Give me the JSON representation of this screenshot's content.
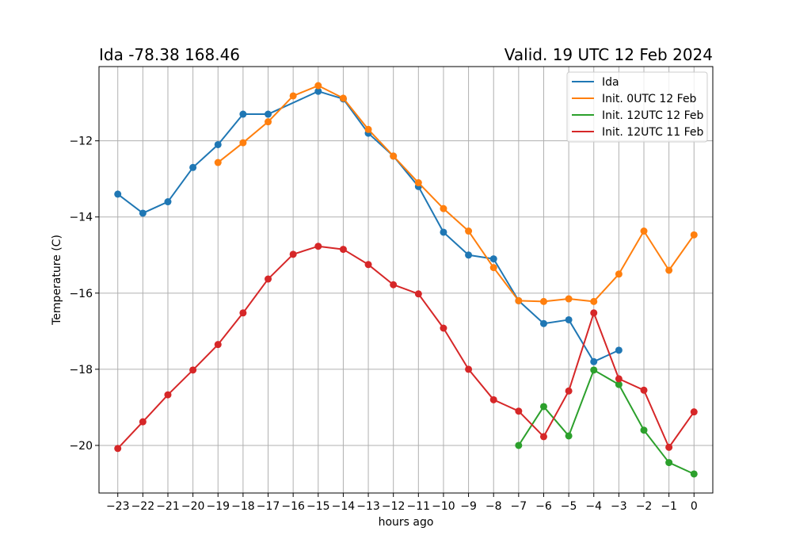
{
  "chart_data": {
    "type": "line",
    "title_left": "Ida -78.38 168.46",
    "title_right": "Valid. 19 UTC 12 Feb 2024",
    "xlabel": "hours ago",
    "ylabel": "Temperature (C)",
    "xlim": [
      -23.75,
      0.75
    ],
    "ylim": [
      -21.25,
      -10.05
    ],
    "x_ticks": [
      -23,
      -22,
      -21,
      -20,
      -19,
      -18,
      -17,
      -16,
      -15,
      -14,
      -13,
      -12,
      -11,
      -10,
      -9,
      -8,
      -7,
      -6,
      -5,
      -4,
      -3,
      -2,
      -1,
      0
    ],
    "x_tick_labels": [
      "−23",
      "−22",
      "−21",
      "−20",
      "−19",
      "−18",
      "−17",
      "−16",
      "−15",
      "−14",
      "−13",
      "−12",
      "−11",
      "−10",
      "−9",
      "−8",
      "−7",
      "−6",
      "−5",
      "−4",
      "−3",
      "−2",
      "−1",
      "0"
    ],
    "y_ticks": [
      -20,
      -18,
      -16,
      -14,
      -12
    ],
    "y_tick_labels": [
      "−20",
      "−18",
      "−16",
      "−14",
      "−12"
    ],
    "grid": true,
    "legend_position": "top-right",
    "series": [
      {
        "name": "Ida",
        "color": "#1f77b4",
        "x": [
          -23,
          -22,
          -21,
          -20,
          -19,
          -18,
          -17,
          -15,
          -14,
          -13,
          -12,
          -11,
          -10,
          -9,
          -8,
          -7,
          -6,
          -5,
          -4,
          -3
        ],
        "y": [
          -13.4,
          -13.9,
          -13.6,
          -12.7,
          -12.1,
          -11.3,
          -11.3,
          -10.7,
          -10.9,
          -11.8,
          -12.4,
          -13.2,
          -14.4,
          -15.0,
          -15.1,
          -16.2,
          -16.8,
          -16.7,
          -17.8,
          -17.5
        ]
      },
      {
        "name": "Init. 0UTC 12 Feb",
        "color": "#ff7f0e",
        "x": [
          -19,
          -18,
          -17,
          -16,
          -15,
          -14,
          -13,
          -12,
          -11,
          -10,
          -9,
          -8,
          -7,
          -6,
          -5,
          -4,
          -3,
          -2,
          -1,
          0
        ],
        "y": [
          -12.57,
          -12.05,
          -11.5,
          -10.82,
          -10.55,
          -10.88,
          -11.7,
          -12.4,
          -13.1,
          -13.78,
          -14.37,
          -15.33,
          -16.2,
          -16.22,
          -16.15,
          -16.22,
          -15.5,
          -14.37,
          -15.4,
          -14.47
        ]
      },
      {
        "name": "Init. 12UTC 12 Feb",
        "color": "#2ca02c",
        "x": [
          -7,
          -6,
          -5,
          -4,
          -3,
          -2,
          -1,
          0
        ],
        "y": [
          -20.0,
          -18.98,
          -19.75,
          -18.02,
          -18.4,
          -19.6,
          -20.45,
          -20.75
        ]
      },
      {
        "name": "Init. 12UTC 11 Feb",
        "color": "#d62728",
        "x": [
          -23,
          -22,
          -21,
          -20,
          -19,
          -18,
          -17,
          -16,
          -15,
          -14,
          -13,
          -12,
          -11,
          -10,
          -9,
          -8,
          -7,
          -6,
          -5,
          -4,
          -3,
          -2,
          -1,
          0
        ],
        "y": [
          -20.08,
          -19.38,
          -18.67,
          -18.02,
          -17.35,
          -16.52,
          -15.63,
          -14.98,
          -14.77,
          -14.85,
          -15.25,
          -15.78,
          -16.02,
          -16.92,
          -18.0,
          -18.8,
          -19.1,
          -19.77,
          -18.57,
          -16.52,
          -18.25,
          -18.55,
          -20.05,
          -19.12
        ]
      }
    ]
  }
}
